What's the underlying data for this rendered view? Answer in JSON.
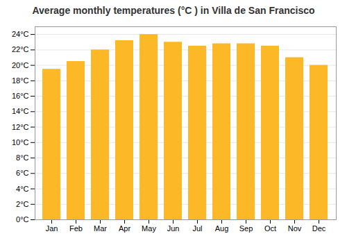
{
  "chart_data": {
    "type": "bar",
    "title": "Average monthly temperatures (°C ) in Villa de San Francisco",
    "categories": [
      "Jan",
      "Feb",
      "Mar",
      "Apr",
      "May",
      "Jun",
      "Jul",
      "Aug",
      "Sep",
      "Oct",
      "Nov",
      "Dec"
    ],
    "values": [
      19.5,
      20.5,
      22.0,
      23.2,
      24.0,
      23.0,
      22.5,
      22.8,
      22.8,
      22.5,
      21.0,
      20.0
    ],
    "color": "#FDB827",
    "ylim": [
      0,
      25
    ],
    "yticks": [
      {
        "value": 0,
        "label": "0°C"
      },
      {
        "value": 2,
        "label": "2°C"
      },
      {
        "value": 4,
        "label": "4°C"
      },
      {
        "value": 6,
        "label": "6°C"
      },
      {
        "value": 8,
        "label": "8°C"
      },
      {
        "value": 10,
        "label": "10°C"
      },
      {
        "value": 12,
        "label": "12°C"
      },
      {
        "value": 14,
        "label": "14°C"
      },
      {
        "value": 16,
        "label": "16°C"
      },
      {
        "value": 18,
        "label": "18°C"
      },
      {
        "value": 20,
        "label": "20°C"
      },
      {
        "value": 22,
        "label": "22°C"
      },
      {
        "value": 24,
        "label": "24°C"
      }
    ],
    "grid": true
  }
}
